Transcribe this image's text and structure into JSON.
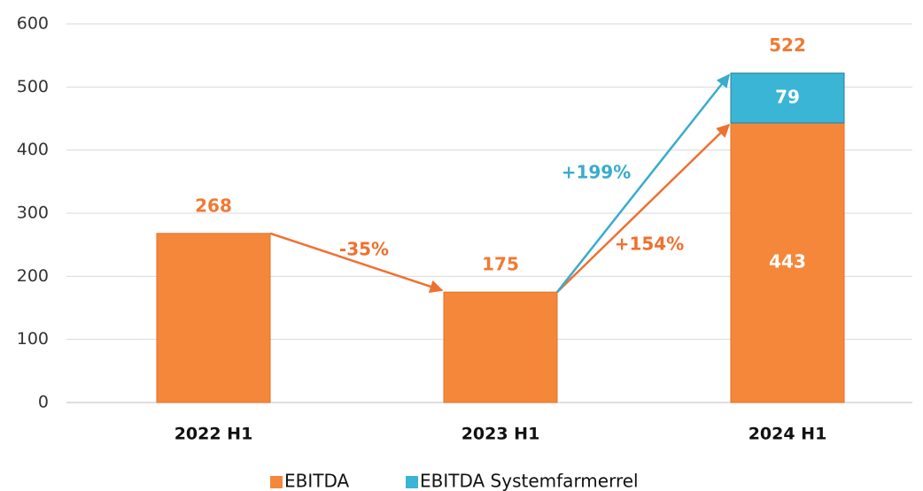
{
  "chart_data": {
    "type": "stacked_bar",
    "categories": [
      "2022 H1",
      "2023 H1",
      "2024 H1"
    ],
    "series": [
      {
        "name": "EBITDA",
        "color": "#f5873a",
        "values": [
          268,
          175,
          443
        ]
      },
      {
        "name": "EBITDA Systemfarmerrel",
        "color": "#3ab5d6",
        "values": [
          null,
          null,
          79
        ]
      }
    ],
    "totals": [
      268,
      175,
      522
    ],
    "annotations": [
      {
        "text": "-35%",
        "color": "#f07030"
      },
      {
        "text": "+154%",
        "color": "#f07030"
      },
      {
        "text": "+199%",
        "color": "#3aaccc"
      }
    ],
    "ylim": [
      0,
      600
    ],
    "yticks": [
      0,
      100,
      200,
      300,
      400,
      500,
      600
    ],
    "grid": true,
    "legend": "bottom"
  }
}
